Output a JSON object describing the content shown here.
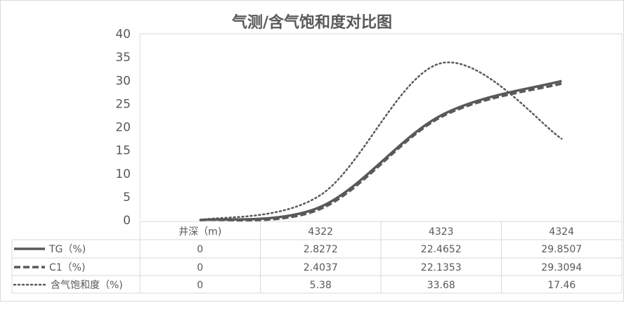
{
  "chart_data": {
    "type": "line",
    "title": "气测/含气饱和度对比图",
    "categories": [
      "井深（m)",
      "4322",
      "4323",
      "4324"
    ],
    "series": [
      {
        "name": "TG（%)",
        "values": [
          0,
          2.8272,
          22.4652,
          29.8507
        ],
        "display_values": [
          "0",
          "2.8272",
          "22.4652",
          "29.8507"
        ],
        "style": "solid",
        "color": "#595959"
      },
      {
        "name": "C1（%)",
        "values": [
          0,
          2.4037,
          22.1353,
          29.3094
        ],
        "display_values": [
          "0",
          "2.4037",
          "22.1353",
          "29.3094"
        ],
        "style": "dashed",
        "color": "#595959"
      },
      {
        "name": "含气饱和度（%)",
        "values": [
          0,
          5.38,
          33.68,
          17.46
        ],
        "display_values": [
          "0",
          "5.38",
          "33.68",
          "17.46"
        ],
        "style": "dotted",
        "color": "#595959"
      }
    ],
    "ylim": [
      0,
      40
    ],
    "yticks": [
      "0",
      "5",
      "10",
      "15",
      "20",
      "25",
      "30",
      "35",
      "40"
    ],
    "smooth": true,
    "grid": false,
    "legend": "data-table"
  }
}
